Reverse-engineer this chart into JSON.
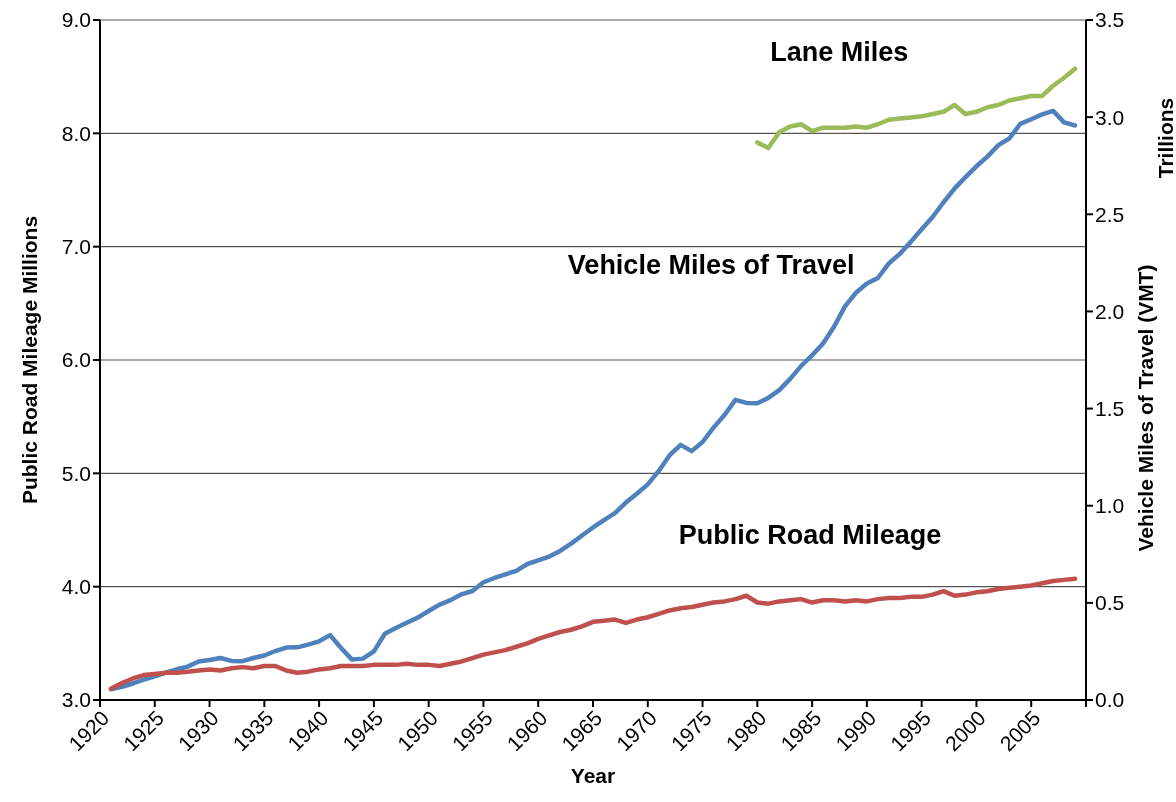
{
  "chart_data": {
    "type": "line",
    "xlabel": "Year",
    "ylabel": "Public Road Mileage  Millions",
    "y2label": "Vehicle Miles of Travel (VMT)",
    "annotations": [
      "Trillions"
    ],
    "xlim": [
      1920,
      2010
    ],
    "xticks": [
      1920,
      1925,
      1930,
      1935,
      1940,
      1945,
      1950,
      1955,
      1960,
      1965,
      1970,
      1975,
      1980,
      1985,
      1990,
      1995,
      2000,
      2005,
      {
        "value": 2010,
        "label": null
      }
    ],
    "ylim": [
      3,
      9
    ],
    "yticks": [
      {
        "value": 3,
        "label": "3.0"
      },
      {
        "value": 4,
        "label": "4.0"
      },
      {
        "value": 5,
        "label": "5.0"
      },
      {
        "value": 6,
        "label": "6.0"
      },
      {
        "value": 7,
        "label": "7.0"
      },
      {
        "value": 8,
        "label": "8.0"
      },
      {
        "value": 9,
        "label": "9.0"
      }
    ],
    "y2lim": [
      0,
      3.5
    ],
    "y2ticks": [
      {
        "value": 0,
        "label": "0.0"
      },
      {
        "value": 0.5,
        "label": "0.5"
      },
      {
        "value": 1,
        "label": "1.0"
      },
      {
        "value": 1.5,
        "label": "1.5"
      },
      {
        "value": 2,
        "label": "2.0"
      },
      {
        "value": 2.5,
        "label": "2.5"
      },
      {
        "value": 3,
        "label": "3.0"
      },
      {
        "value": 3.5,
        "label": "3.5"
      }
    ],
    "grid": "y",
    "legend": false,
    "marker": "none",
    "line_style": "solid",
    "series": [
      {
        "name": "Lane Miles",
        "color": "#9bbb59",
        "x": [
          1980,
          1981,
          1982,
          1983,
          1984,
          1985,
          1986,
          1987,
          1988,
          1989,
          1990,
          1991,
          1992,
          1993,
          1994,
          1995,
          1996,
          1997,
          1998,
          1999,
          2000,
          2001,
          2002,
          2003,
          2004,
          2005,
          2006,
          2007,
          2008,
          2009
        ],
        "values": [
          7.92,
          7.87,
          8.01,
          8.06,
          8.08,
          8.02,
          8.05,
          8.05,
          8.05,
          8.06,
          8.05,
          8.08,
          8.12,
          8.13,
          8.14,
          8.15,
          8.17,
          8.19,
          8.25,
          8.17,
          8.19,
          8.23,
          8.25,
          8.29,
          8.31,
          8.33,
          8.33,
          8.42,
          8.49,
          8.57
        ]
      },
      {
        "name": "Vehicle Miles of Travel",
        "color": "#4f81bd",
        "axis": "y2",
        "x": [
          1921,
          1922,
          1923,
          1924,
          1925,
          1926,
          1927,
          1928,
          1929,
          1930,
          1931,
          1932,
          1933,
          1934,
          1935,
          1936,
          1937,
          1938,
          1939,
          1940,
          1941,
          1942,
          1943,
          1944,
          1945,
          1946,
          1947,
          1948,
          1949,
          1950,
          1951,
          1952,
          1953,
          1954,
          1955,
          1956,
          1957,
          1958,
          1959,
          1960,
          1961,
          1962,
          1963,
          1964,
          1965,
          1966,
          1967,
          1968,
          1969,
          1970,
          1971,
          1972,
          1973,
          1974,
          1975,
          1976,
          1977,
          1978,
          1979,
          1980,
          1981,
          1982,
          1983,
          1984,
          1985,
          1986,
          1987,
          1988,
          1989,
          1990,
          1991,
          1992,
          1993,
          1994,
          1995,
          1996,
          1997,
          1998,
          1999,
          2000,
          2001,
          2002,
          2003,
          2004,
          2005,
          2006,
          2007,
          2008,
          2009
        ],
        "values": [
          0.055,
          0.068,
          0.085,
          0.105,
          0.122,
          0.141,
          0.158,
          0.172,
          0.198,
          0.206,
          0.216,
          0.201,
          0.2,
          0.216,
          0.229,
          0.252,
          0.27,
          0.271,
          0.285,
          0.302,
          0.334,
          0.268,
          0.208,
          0.213,
          0.25,
          0.341,
          0.371,
          0.398,
          0.424,
          0.458,
          0.491,
          0.514,
          0.544,
          0.561,
          0.606,
          0.628,
          0.647,
          0.665,
          0.7,
          0.719,
          0.738,
          0.767,
          0.805,
          0.847,
          0.888,
          0.926,
          0.962,
          1.016,
          1.062,
          1.11,
          1.179,
          1.26,
          1.313,
          1.281,
          1.328,
          1.402,
          1.467,
          1.545,
          1.529,
          1.527,
          1.555,
          1.595,
          1.653,
          1.72,
          1.774,
          1.835,
          1.921,
          2.026,
          2.096,
          2.144,
          2.172,
          2.247,
          2.296,
          2.358,
          2.423,
          2.486,
          2.562,
          2.632,
          2.691,
          2.747,
          2.797,
          2.856,
          2.89,
          2.965,
          2.989,
          3.014,
          3.032,
          2.973,
          2.957
        ]
      },
      {
        "name": "Public Road Mileage",
        "color": "#c0504d",
        "x": [
          1921,
          1922,
          1923,
          1924,
          1925,
          1926,
          1927,
          1928,
          1929,
          1930,
          1931,
          1932,
          1933,
          1934,
          1935,
          1936,
          1937,
          1938,
          1939,
          1940,
          1941,
          1942,
          1943,
          1944,
          1945,
          1946,
          1947,
          1948,
          1949,
          1950,
          1951,
          1952,
          1953,
          1954,
          1955,
          1956,
          1957,
          1958,
          1959,
          1960,
          1961,
          1962,
          1963,
          1964,
          1965,
          1966,
          1967,
          1968,
          1969,
          1970,
          1971,
          1972,
          1973,
          1974,
          1975,
          1976,
          1977,
          1978,
          1979,
          1980,
          1981,
          1982,
          1983,
          1984,
          1985,
          1986,
          1987,
          1988,
          1989,
          1990,
          1991,
          1992,
          1993,
          1994,
          1995,
          1996,
          1997,
          1998,
          1999,
          2000,
          2001,
          2002,
          2003,
          2004,
          2005,
          2006,
          2007,
          2008,
          2009
        ],
        "values": [
          3.1,
          3.15,
          3.19,
          3.22,
          3.23,
          3.24,
          3.24,
          3.25,
          3.26,
          3.27,
          3.26,
          3.28,
          3.29,
          3.28,
          3.3,
          3.3,
          3.26,
          3.24,
          3.25,
          3.27,
          3.28,
          3.3,
          3.3,
          3.3,
          3.31,
          3.31,
          3.31,
          3.32,
          3.31,
          3.31,
          3.3,
          3.32,
          3.34,
          3.37,
          3.4,
          3.42,
          3.44,
          3.47,
          3.5,
          3.54,
          3.57,
          3.6,
          3.62,
          3.65,
          3.69,
          3.7,
          3.71,
          3.68,
          3.71,
          3.73,
          3.76,
          3.79,
          3.81,
          3.82,
          3.84,
          3.86,
          3.87,
          3.89,
          3.92,
          3.86,
          3.85,
          3.87,
          3.88,
          3.89,
          3.86,
          3.88,
          3.88,
          3.87,
          3.88,
          3.87,
          3.89,
          3.9,
          3.9,
          3.91,
          3.91,
          3.93,
          3.96,
          3.92,
          3.93,
          3.95,
          3.96,
          3.98,
          3.99,
          4.0,
          4.01,
          4.03,
          4.05,
          4.06,
          4.07
        ]
      }
    ]
  }
}
